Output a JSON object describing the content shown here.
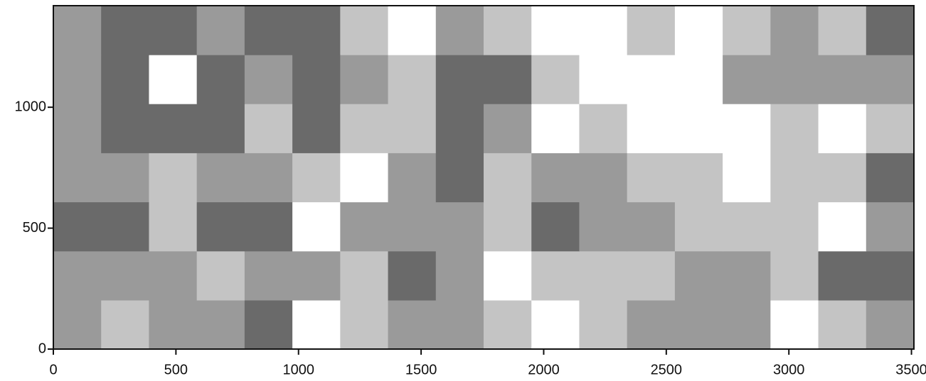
{
  "chart_data": {
    "type": "contour",
    "x": [
      97.5,
      292.5,
      487.5,
      682.5,
      877.5,
      1072.5,
      1267.5,
      1462.5,
      1657.5,
      1852.5,
      2047.5,
      2242.5,
      2437.5,
      2632.5,
      2827.5,
      3022.5,
      3217.5,
      3412.5
    ],
    "y": [
      101,
      304,
      507,
      710,
      913,
      1116,
      1318
    ],
    "z": [
      [
        2,
        1,
        2,
        2,
        3,
        0,
        1,
        2,
        2,
        1,
        0,
        1,
        2,
        2,
        2,
        0,
        1,
        2
      ],
      [
        2,
        2,
        2,
        1,
        2,
        2,
        1,
        3,
        2,
        0,
        1,
        1,
        1,
        2,
        2,
        1,
        3,
        3
      ],
      [
        3,
        3,
        1,
        3,
        3,
        0,
        2,
        2,
        2,
        1,
        3,
        2,
        2,
        1,
        1,
        1,
        0,
        2
      ],
      [
        2,
        2,
        1,
        2,
        2,
        1,
        0,
        2,
        3,
        1,
        2,
        2,
        1,
        1,
        0,
        1,
        1,
        3
      ],
      [
        2,
        3,
        3,
        3,
        1,
        3,
        1,
        1,
        3,
        2,
        0,
        1,
        0,
        0,
        0,
        1,
        0,
        1
      ],
      [
        2,
        3,
        0,
        3,
        2,
        3,
        2,
        1,
        3,
        3,
        1,
        0,
        0,
        0,
        2,
        2,
        2,
        2
      ],
      [
        2,
        3,
        3,
        2,
        3,
        3,
        1,
        0,
        2,
        1,
        0,
        0,
        1,
        0,
        1,
        2,
        1,
        3
      ]
    ],
    "colors": [
      "#ffffff",
      "#c4c4c4",
      "#9a9a9a",
      "#6a6a6a",
      "#3a3a3a"
    ],
    "xlim": [
      0,
      3510
    ],
    "ylim": [
      0,
      1420
    ],
    "xticks": [
      0,
      500,
      1000,
      1500,
      2000,
      2500,
      3000,
      3500
    ],
    "yticks": [
      0,
      500,
      1000
    ]
  }
}
